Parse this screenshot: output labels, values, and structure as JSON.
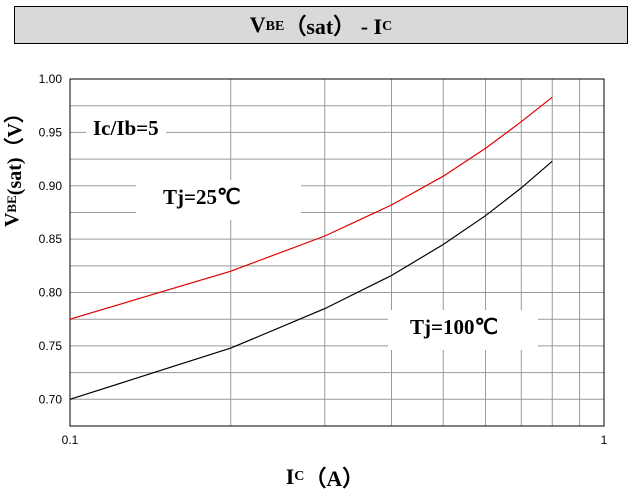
{
  "title": {
    "main": "V",
    "sub": "BE",
    "rest": "（sat） - I",
    "sub2": "C"
  },
  "ylabel": {
    "main": "V",
    "sub": "BE",
    "rest": "(sat)（V）"
  },
  "xlabel": {
    "main": "I",
    "sub": "C",
    "rest": "（A）"
  },
  "chart_data": {
    "type": "line",
    "title": "VBE（sat） - IC",
    "xlabel": "IC（A）",
    "ylabel": "VBE(sat)（V）",
    "xscale": "log",
    "xlim": [
      0.1,
      1
    ],
    "ylim": [
      0.675,
      1.0
    ],
    "y_ticks": [
      "0.70",
      "0.75",
      "0.80",
      "0.85",
      "0.90",
      "0.95",
      "1.00"
    ],
    "x_ticks": [
      "0.1",
      "1"
    ],
    "grid": true,
    "annotations": [
      "Ic/Ib=5",
      "Tj=25℃",
      "Tj=100℃"
    ],
    "series": [
      {
        "name": "Tj=25℃",
        "color": "#e00000",
        "x": [
          0.1,
          0.2,
          0.3,
          0.4,
          0.5,
          0.6,
          0.7,
          0.8
        ],
        "y": [
          0.775,
          0.82,
          0.853,
          0.882,
          0.909,
          0.935,
          0.96,
          0.983
        ]
      },
      {
        "name": "Tj=100℃",
        "color": "#000000",
        "x": [
          0.1,
          0.2,
          0.3,
          0.4,
          0.5,
          0.6,
          0.7,
          0.8
        ],
        "y": [
          0.7,
          0.748,
          0.785,
          0.816,
          0.845,
          0.872,
          0.898,
          0.923
        ]
      }
    ]
  }
}
